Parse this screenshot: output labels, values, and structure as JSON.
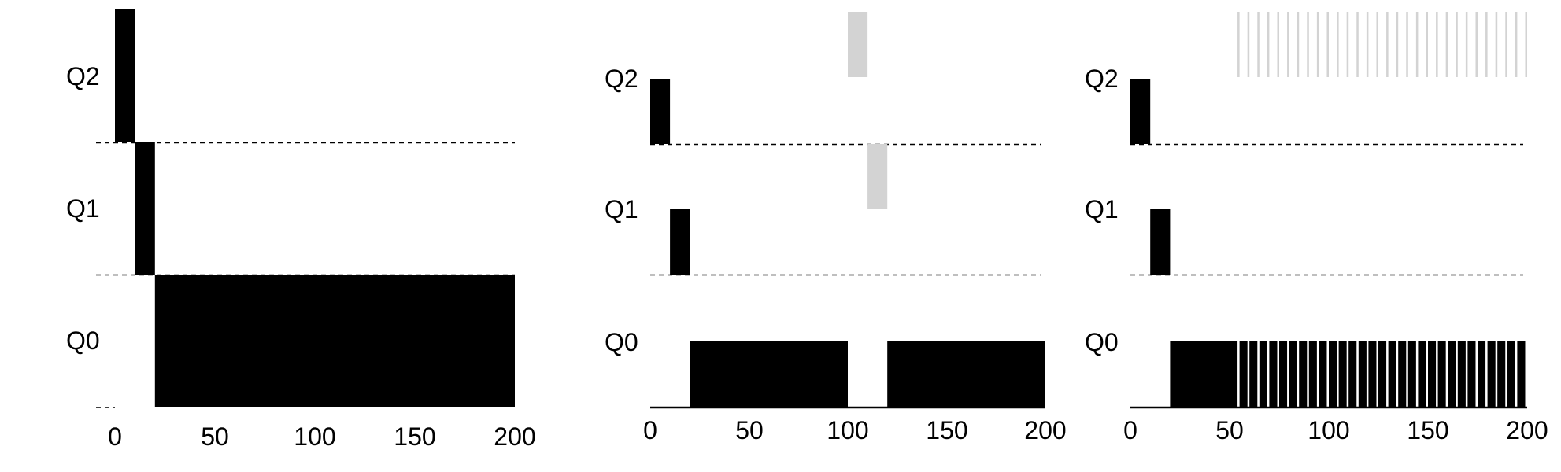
{
  "chart_data": [
    {
      "type": "bar",
      "queues": [
        "Q2",
        "Q1",
        "Q0"
      ],
      "xlim": [
        0,
        200
      ],
      "xticks": [
        "0",
        "50",
        "100",
        "150",
        "200"
      ],
      "baseline_dashed": true,
      "segments": [
        {
          "queue": "Q2",
          "start": 0,
          "end": 10,
          "color": "black"
        },
        {
          "queue": "Q1",
          "start": 10,
          "end": 20,
          "color": "black"
        },
        {
          "queue": "Q0",
          "start": 20,
          "end": 200,
          "color": "black"
        }
      ],
      "minor_segments": []
    },
    {
      "type": "bar",
      "queues": [
        "Q2",
        "Q1",
        "Q0"
      ],
      "xlim": [
        0,
        200
      ],
      "xticks": [
        "0",
        "50",
        "100",
        "150",
        "200"
      ],
      "baseline_dashed": false,
      "segments": [
        {
          "queue": "Q2",
          "start": 0,
          "end": 10,
          "color": "black"
        },
        {
          "queue": "Q1",
          "start": 10,
          "end": 20,
          "color": "black"
        },
        {
          "queue": "Q0",
          "start": 20,
          "end": 100,
          "color": "black"
        },
        {
          "queue": "Q2",
          "start": 100,
          "end": 110,
          "color": "gray"
        },
        {
          "queue": "Q1",
          "start": 110,
          "end": 120,
          "color": "gray"
        },
        {
          "queue": "Q0",
          "start": 120,
          "end": 200,
          "color": "black"
        }
      ],
      "minor_segments": []
    },
    {
      "type": "bar",
      "queues": [
        "Q2",
        "Q1",
        "Q0"
      ],
      "xlim": [
        0,
        200
      ],
      "xticks": [
        "0",
        "50",
        "100",
        "150",
        "200"
      ],
      "baseline_dashed": false,
      "segments": [
        {
          "queue": "Q2",
          "start": 0,
          "end": 10,
          "color": "black"
        },
        {
          "queue": "Q1",
          "start": 10,
          "end": 20,
          "color": "black"
        },
        {
          "queue": "Q0",
          "start": 20,
          "end": 50,
          "color": "black"
        }
      ],
      "minor_segments": [
        {
          "queue": "Q0",
          "start": 50,
          "end": 200,
          "period": 5,
          "on": 4,
          "color": "black"
        },
        {
          "queue": "Q2",
          "start": 50,
          "end": 200,
          "period": 5,
          "on": 1,
          "color": "gray"
        }
      ]
    }
  ],
  "colors": {
    "black": "#000000",
    "gray": "#d3d3d3",
    "axis": "#000000"
  }
}
